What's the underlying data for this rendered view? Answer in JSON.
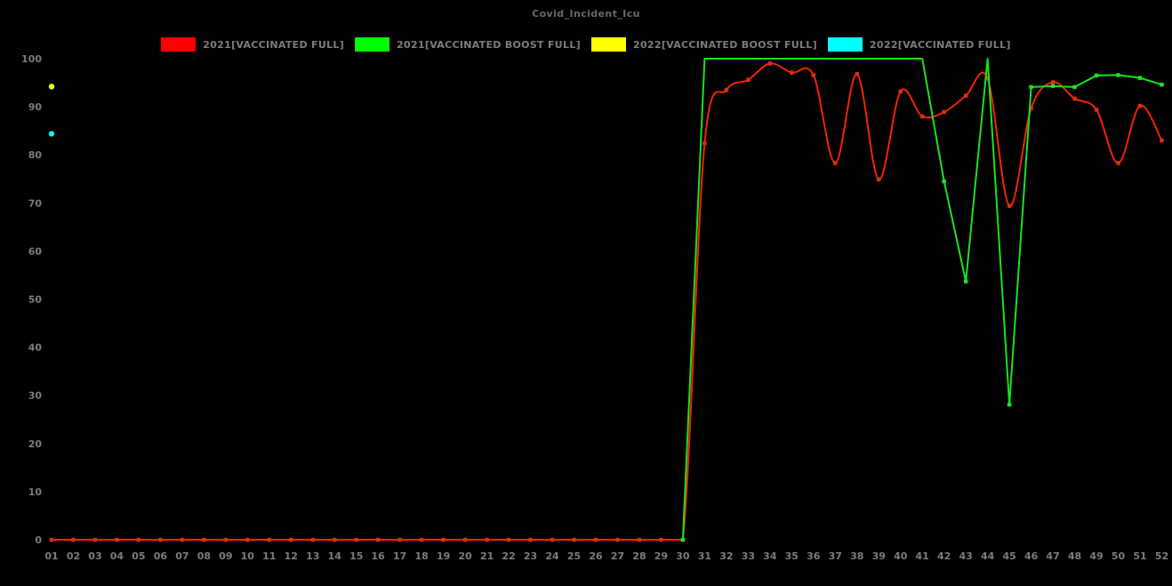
{
  "title": "Covid_Incident_Icu",
  "colors": {
    "background": "#000000",
    "tick_text": "#7d7d7d",
    "title_text": "#696969",
    "red": "#ff0000",
    "green": "#00ff00",
    "yellow": "#ffff00",
    "cyan": "#00ffff"
  },
  "legend": [
    {
      "id": "2021-vaccinated-full",
      "label": "2021[VACCINATED FULL]",
      "color": "#ff0000"
    },
    {
      "id": "2021-vaccinated-boost-full",
      "label": "2021[VACCINATED BOOST FULL]",
      "color": "#00ff00"
    },
    {
      "id": "2022-vaccinated-boost-full",
      "label": "2022[VACCINATED BOOST FULL]",
      "color": "#ffff00"
    },
    {
      "id": "2022-vaccinated-full",
      "label": "2022[VACCINATED FULL]",
      "color": "#00ffff"
    }
  ],
  "chart_data": {
    "type": "line",
    "title": "Covid_Incident_Icu",
    "xlabel": "",
    "ylabel": "",
    "ylim": [
      0,
      100
    ],
    "grid": false,
    "legend_position": "top",
    "y_ticks": [
      0,
      10,
      20,
      30,
      40,
      50,
      60,
      70,
      80,
      90,
      100
    ],
    "x_ticks": [
      "01",
      "02",
      "03",
      "04",
      "05",
      "06",
      "07",
      "08",
      "09",
      "10",
      "11",
      "12",
      "13",
      "14",
      "15",
      "16",
      "17",
      "18",
      "19",
      "20",
      "21",
      "22",
      "23",
      "24",
      "25",
      "26",
      "27",
      "28",
      "29",
      "30",
      "31",
      "32",
      "33",
      "34",
      "35",
      "36",
      "37",
      "38",
      "39",
      "40",
      "41",
      "42",
      "43",
      "44",
      "45",
      "46",
      "47",
      "48",
      "49",
      "50",
      "51",
      "52"
    ],
    "series": [
      {
        "id": "2021-vaccinated-full",
        "name": "2021[VACCINATED FULL]",
        "color": "#f42300",
        "marker_color": "#db2f12",
        "smooth": true,
        "start_week": 1,
        "values": [
          0,
          0,
          0,
          0,
          0,
          0,
          0,
          0,
          0,
          0,
          0,
          0,
          0,
          0,
          0,
          0,
          0,
          0,
          0,
          0,
          0,
          0,
          0,
          0,
          0,
          0,
          0,
          0,
          0,
          0,
          82.4,
          93.5,
          95.6,
          99,
          97.1,
          96.6,
          78.3,
          96.8,
          74.9,
          93.2,
          88,
          88.9,
          92.3,
          95.9,
          69.4,
          89.7,
          95.1,
          91.7,
          89.4,
          78.3,
          90.2,
          83
        ]
      },
      {
        "id": "2021-vaccinated-boost-full",
        "name": "2021[VACCINATED BOOST FULL]",
        "color": "#17e41c",
        "marker_color": "#17e41c",
        "smooth": false,
        "hide_marker_at_max": true,
        "start_week": 30,
        "values": [
          0,
          100,
          100,
          100,
          100,
          100,
          100,
          100,
          100,
          100,
          100,
          100,
          74.5,
          53.7,
          100,
          28.1,
          94.1,
          94.3,
          94.1,
          96.5,
          96.6,
          96,
          94.6
        ]
      },
      {
        "id": "2022-vaccinated-boost-full",
        "name": "2022[VACCINATED BOOST FULL]",
        "color": "#ffff00",
        "points": [
          {
            "week": 1,
            "value": 94.2
          }
        ]
      },
      {
        "id": "2022-vaccinated-full",
        "name": "2022[VACCINATED FULL]",
        "color": "#00ffff",
        "points": [
          {
            "week": 1,
            "value": 84.4
          }
        ]
      }
    ]
  }
}
